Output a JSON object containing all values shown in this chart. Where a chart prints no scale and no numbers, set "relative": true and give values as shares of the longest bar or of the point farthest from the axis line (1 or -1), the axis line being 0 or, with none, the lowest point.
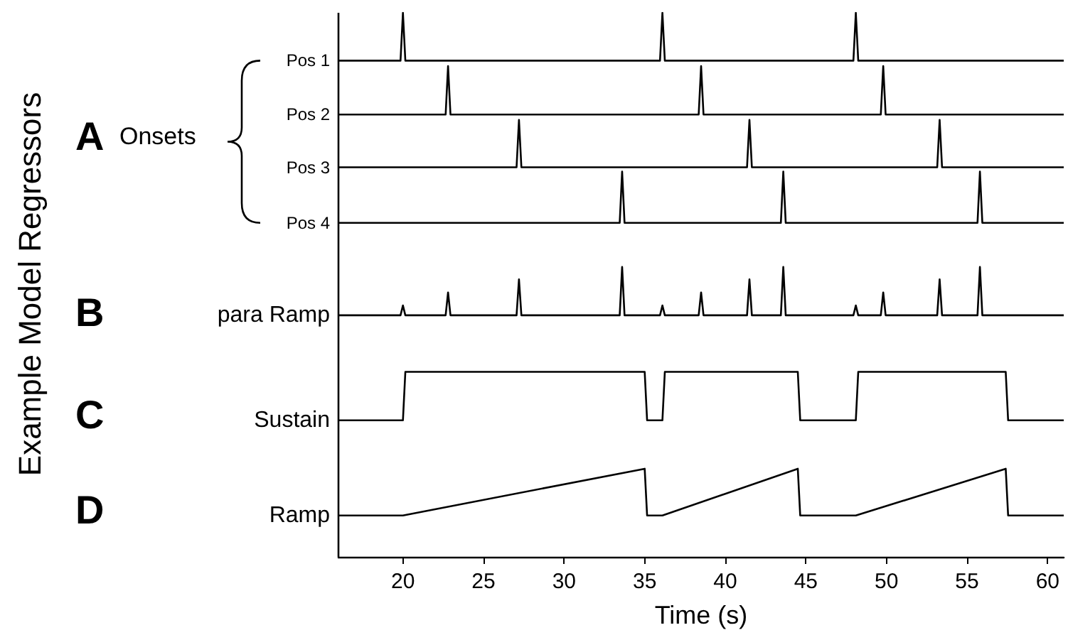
{
  "chart_data": {
    "type": "line",
    "relative": true,
    "xlabel": "Time (s)",
    "annotations": [
      "A",
      "Onsets",
      "B",
      "C",
      "D",
      "Example Model Regressors"
    ],
    "xlim": [
      16,
      61
    ],
    "xticks": [
      20,
      25,
      30,
      35,
      40,
      45,
      50,
      55,
      60
    ],
    "marker": "none",
    "line_style": "solid",
    "series": [
      {
        "name": "Pos 1",
        "color": "#000000",
        "x": [
          16,
          19.85,
          20,
          20.15,
          35.95,
          36.1,
          36.25,
          47.95,
          48.1,
          48.25,
          61
        ],
        "values": [
          0.912,
          0.912,
          1,
          0.912,
          0.912,
          1,
          0.912,
          0.912,
          1,
          0.912,
          0.912
        ]
      },
      {
        "name": "Pos 2",
        "color": "#000000",
        "x": [
          16,
          22.65,
          22.8,
          22.95,
          38.35,
          38.5,
          38.65,
          49.65,
          49.8,
          49.95,
          61
        ],
        "values": [
          0.813,
          0.813,
          0.902,
          0.813,
          0.813,
          0.902,
          0.813,
          0.813,
          0.902,
          0.813,
          0.813
        ]
      },
      {
        "name": "Pos 3",
        "color": "#000000",
        "x": [
          16,
          27.05,
          27.2,
          27.35,
          41.35,
          41.5,
          41.65,
          53.15,
          53.3,
          53.45,
          61
        ],
        "values": [
          0.716,
          0.716,
          0.803,
          0.716,
          0.716,
          0.803,
          0.716,
          0.716,
          0.803,
          0.716,
          0.716
        ]
      },
      {
        "name": "Pos 4",
        "color": "#000000",
        "x": [
          16,
          33.45,
          33.6,
          33.75,
          43.45,
          43.6,
          43.75,
          55.65,
          55.8,
          55.95,
          61
        ],
        "values": [
          0.614,
          0.614,
          0.708,
          0.614,
          0.614,
          0.708,
          0.614,
          0.614,
          0.708,
          0.614,
          0.614
        ]
      },
      {
        "name": "para Ramp",
        "color": "#000000",
        "x": [
          16,
          19.85,
          20,
          20.15,
          22.65,
          22.8,
          22.95,
          27.05,
          27.2,
          27.35,
          33.45,
          33.6,
          33.75,
          35.95,
          36.1,
          36.25,
          38.35,
          38.5,
          38.65,
          41.35,
          41.5,
          41.65,
          43.45,
          43.6,
          43.75,
          47.95,
          48.1,
          48.25,
          49.65,
          49.8,
          49.95,
          53.15,
          53.3,
          53.45,
          55.65,
          55.8,
          55.95,
          61
        ],
        "values": [
          0.444,
          0.444,
          0.462,
          0.444,
          0.444,
          0.486,
          0.444,
          0.444,
          0.51,
          0.444,
          0.444,
          0.533,
          0.444,
          0.444,
          0.462,
          0.444,
          0.444,
          0.486,
          0.444,
          0.444,
          0.51,
          0.444,
          0.444,
          0.533,
          0.444,
          0.444,
          0.462,
          0.444,
          0.444,
          0.486,
          0.444,
          0.444,
          0.51,
          0.444,
          0.444,
          0.533,
          0.444,
          0.444
        ]
      },
      {
        "name": "Sustain",
        "color": "#000000",
        "x": [
          16,
          20,
          20.15,
          35,
          35.15,
          36.1,
          36.25,
          44.5,
          44.65,
          48.1,
          48.25,
          57.4,
          57.55,
          61
        ],
        "values": [
          0.251,
          0.251,
          0.34,
          0.34,
          0.251,
          0.251,
          0.34,
          0.34,
          0.251,
          0.251,
          0.34,
          0.34,
          0.251,
          0.251
        ]
      },
      {
        "name": "Ramp",
        "color": "#000000",
        "x": [
          16,
          20,
          35,
          35.15,
          36.1,
          44.5,
          44.65,
          48.1,
          57.4,
          57.55,
          61
        ],
        "values": [
          0.076,
          0.076,
          0.162,
          0.076,
          0.076,
          0.162,
          0.076,
          0.076,
          0.162,
          0.076,
          0.076
        ]
      }
    ]
  }
}
